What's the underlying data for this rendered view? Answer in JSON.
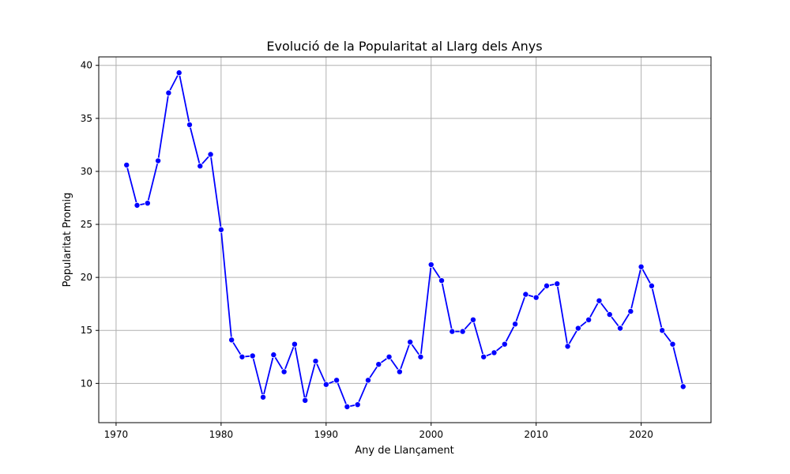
{
  "chart_data": {
    "type": "line",
    "title": "Evolució de la Popularitat al Llarg dels Anys",
    "xlabel": "Any de Llançament",
    "ylabel": "Popularitat Promig",
    "xlim": [
      1968.35,
      2026.65
    ],
    "ylim": [
      6.3,
      40.8
    ],
    "xticks": [
      1970,
      1980,
      1990,
      2000,
      2010,
      2020
    ],
    "yticks": [
      10,
      15,
      20,
      25,
      30,
      35,
      40
    ],
    "grid": true,
    "line_color": "#0000ff",
    "marker": "circle",
    "series": [
      {
        "x": [
          1971,
          1972,
          1973,
          1974,
          1975,
          1976,
          1977,
          1978,
          1979,
          1980,
          1981,
          1982,
          1983,
          1984,
          1985,
          1986,
          1987,
          1988,
          1989,
          1990,
          1991,
          1992,
          1993,
          1994,
          1995,
          1996,
          1997,
          1998,
          1999,
          2000,
          2001,
          2002,
          2003,
          2004,
          2005,
          2006,
          2007,
          2008,
          2009,
          2010,
          2011,
          2012,
          2013,
          2014,
          2015,
          2016,
          2017,
          2018,
          2019,
          2020,
          2021,
          2022,
          2023,
          2024
        ],
        "y": [
          30.6,
          26.8,
          27.0,
          31.0,
          37.4,
          39.3,
          34.4,
          30.5,
          31.6,
          24.5,
          14.1,
          12.5,
          12.6,
          8.7,
          12.7,
          11.1,
          13.7,
          8.4,
          12.1,
          9.9,
          10.3,
          7.8,
          8.0,
          10.3,
          11.8,
          12.5,
          11.1,
          13.9,
          12.5,
          21.2,
          19.7,
          14.9,
          14.9,
          16.0,
          12.5,
          12.9,
          13.7,
          15.6,
          18.4,
          18.1,
          19.2,
          19.4,
          13.5,
          15.2,
          16.0,
          17.8,
          16.5,
          15.2,
          16.8,
          21.0,
          19.2,
          15.0,
          13.7,
          9.7
        ]
      }
    ]
  }
}
